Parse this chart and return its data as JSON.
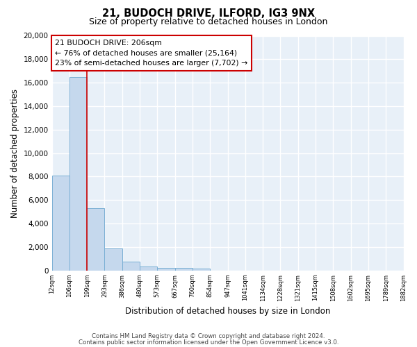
{
  "title": "21, BUDOCH DRIVE, ILFORD, IG3 9NX",
  "subtitle": "Size of property relative to detached houses in London",
  "xlabel": "Distribution of detached houses by size in London",
  "ylabel": "Number of detached properties",
  "bar_color": "#c5d8ed",
  "bar_edge_color": "#7aafd4",
  "background_color": "#e8f0f8",
  "grid_color": "#ffffff",
  "red_line_index": 2,
  "annotation_line1": "21 BUDOCH DRIVE: 206sqm",
  "annotation_line2": "← 76% of detached houses are smaller (25,164)",
  "annotation_line3": "23% of semi-detached houses are larger (7,702) →",
  "annotation_box_color": "#ffffff",
  "annotation_box_edge": "#cc0000",
  "footnote1": "Contains HM Land Registry data © Crown copyright and database right 2024.",
  "footnote2": "Contains public sector information licensed under the Open Government Licence v3.0.",
  "xlabels": [
    "12sqm",
    "106sqm",
    "199sqm",
    "293sqm",
    "386sqm",
    "480sqm",
    "573sqm",
    "667sqm",
    "760sqm",
    "854sqm",
    "947sqm",
    "1041sqm",
    "1134sqm",
    "1228sqm",
    "1321sqm",
    "1415sqm",
    "1508sqm",
    "1602sqm",
    "1695sqm",
    "1789sqm",
    "1882sqm"
  ],
  "bar_heights": [
    8100,
    16500,
    5300,
    1850,
    750,
    310,
    240,
    210,
    180,
    0,
    0,
    0,
    0,
    0,
    0,
    0,
    0,
    0,
    0,
    0
  ],
  "ylim": [
    0,
    20000
  ],
  "yticks": [
    0,
    2000,
    4000,
    6000,
    8000,
    10000,
    12000,
    14000,
    16000,
    18000,
    20000
  ]
}
